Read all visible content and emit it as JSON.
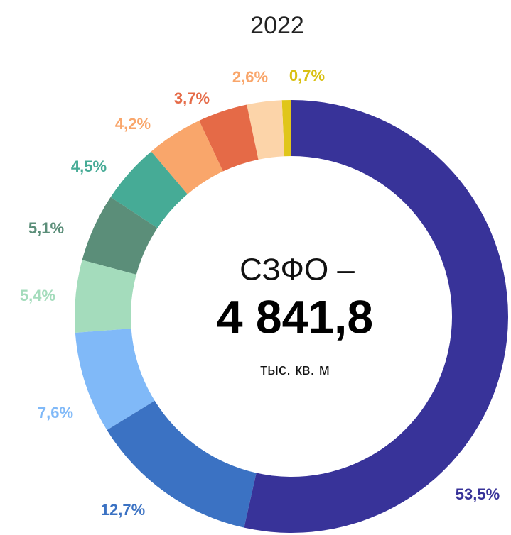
{
  "chart_data": {
    "type": "donut",
    "title": "2022",
    "annotations": [
      "СЗФО –",
      "4 841,8",
      "тыс. кв. м"
    ],
    "values": [
      53.5,
      12.7,
      7.6,
      5.4,
      5.1,
      4.5,
      4.2,
      3.7,
      2.6,
      0.7
    ],
    "value_labels": [
      "53,5%",
      "12,7%",
      "7,6%",
      "5,4%",
      "5,1%",
      "4,5%",
      "4,2%",
      "3,7%",
      "2,6%",
      "0,7%"
    ],
    "colors": [
      "#383399",
      "#3b72c3",
      "#80b9f8",
      "#a4dcbc",
      "#5b8e79",
      "#46ab96",
      "#f9a66b",
      "#e56a47",
      "#fcd4a9",
      "#e0c61a"
    ],
    "label_colors": [
      "#383399",
      "#3b72c3",
      "#80b9f8",
      "#a4dcbc",
      "#5b8e79",
      "#46ab96",
      "#f9a66b",
      "#e56a47",
      "#f9a66b",
      "#d9c012"
    ]
  }
}
